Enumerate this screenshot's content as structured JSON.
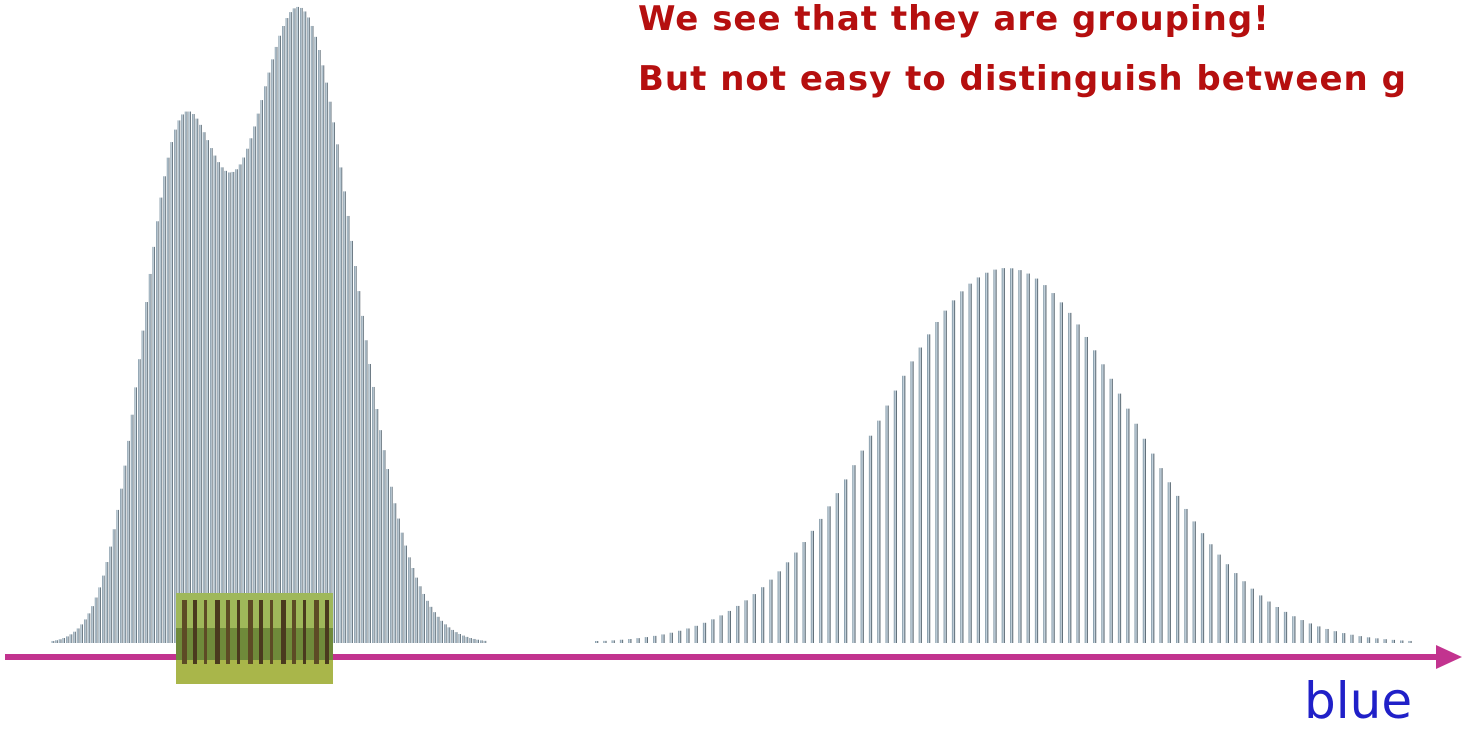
{
  "heading": {
    "line1": "We see that they are grouping!",
    "line2": "But not easy to distinguish between g"
  },
  "axis_label": "blue"
}
